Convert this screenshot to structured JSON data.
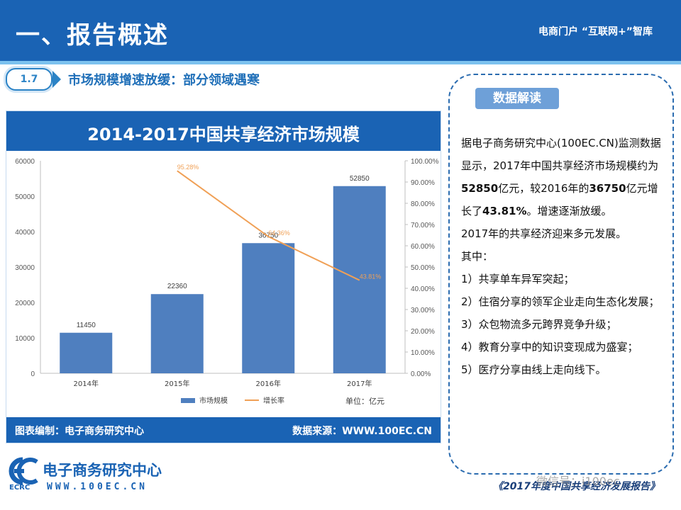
{
  "header": {
    "title": "一、报告概述",
    "tagline": "电商门户 “互联网+”智库"
  },
  "section": {
    "number": "1.7",
    "title": "市场规模增速放缓：部分领域遇寒"
  },
  "chart_panel": {
    "source_left": "图表编制：电子商务研究中心",
    "source_right": "数据来源：WWW.100EC.CN"
  },
  "chart_data": {
    "type": "bar",
    "title": "2014-2017中国共享经济市场规模",
    "categories": [
      "2014年",
      "2015年",
      "2016年",
      "2017年"
    ],
    "series": [
      {
        "name": "市场规模",
        "type": "bar",
        "axis": "left",
        "values": [
          11450,
          22360,
          36750,
          52850
        ],
        "labels": [
          "11450",
          "22360",
          "36750",
          "52850"
        ]
      },
      {
        "name": "增长率",
        "type": "line",
        "axis": "right",
        "values": [
          null,
          95.28,
          64.36,
          43.81
        ],
        "labels": [
          "",
          "95.28%",
          "64.36%",
          "43.81%"
        ]
      }
    ],
    "ylim_left": [
      0,
      60000
    ],
    "yticks_left": [
      "0",
      "10000",
      "20000",
      "30000",
      "40000",
      "50000",
      "60000"
    ],
    "ylim_right": [
      0,
      100
    ],
    "yticks_right": [
      "0.00%",
      "10.00%",
      "20.00%",
      "30.00%",
      "40.00%",
      "50.00%",
      "60.00%",
      "70.00%",
      "80.00%",
      "90.00%",
      "100.00%"
    ],
    "unit_note": "单位：亿元",
    "legend_position": "bottom",
    "grid": false,
    "colors": {
      "bar": "#4f7fbf",
      "line": "#f0a056",
      "line_label": "#f0a056"
    }
  },
  "note": {
    "tag": "数据解读",
    "para1_a": "据电子商务研究中心(100EC.CN)监测数据显示，2017年中国共享经济市场规模约为",
    "para1_b": "52850",
    "para1_c": "亿元，较2016年的",
    "para1_d": "36750",
    "para1_e": "亿元增长了",
    "para1_f": "43.81%",
    "para1_g": "。增速逐渐放缓。",
    "line2": "2017年的共享经济迎来多元发展。",
    "line3": "其中：",
    "items": [
      "1）共享单车异军突起；",
      "2）住宿分享的领军企业走向生态化发展；",
      "3）众包物流多元跨界竞争升级；",
      "4）教育分享中的知识变现成为盛宴；",
      "5）医疗分享由线上走向线下。"
    ]
  },
  "footer": {
    "logo_name": "电子商务研究中心",
    "logo_abbr": "ECRC",
    "logo_url": "WWW.100EC.CN",
    "report_name": "《2017年度中国共享经济发展报告》",
    "watermark": "微信号：i100ec"
  }
}
